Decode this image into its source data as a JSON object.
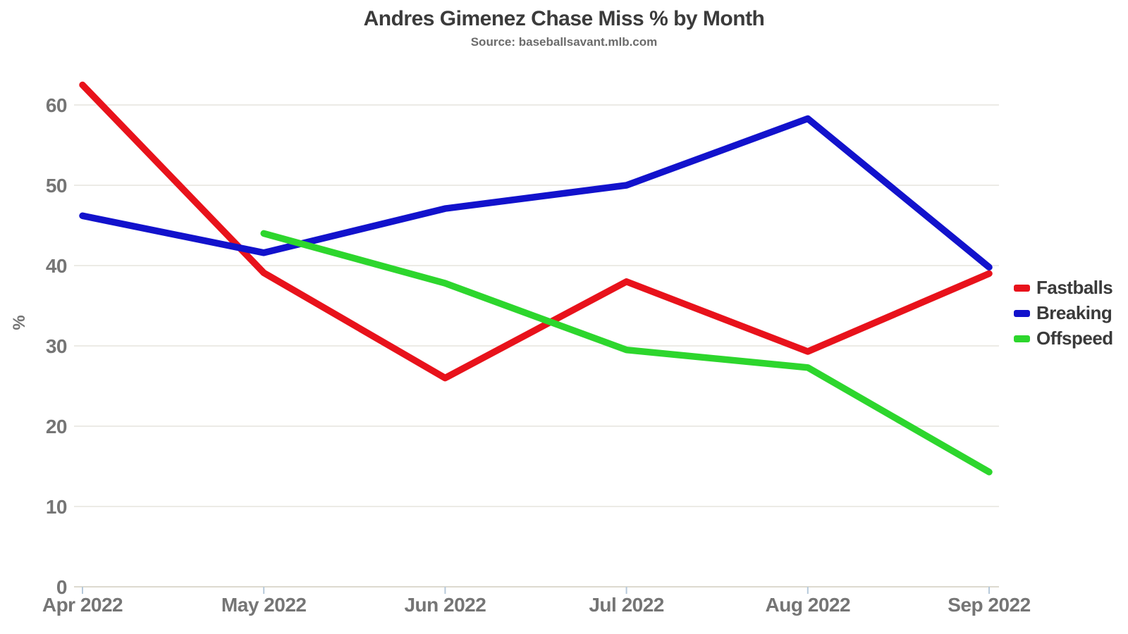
{
  "chart_data": {
    "type": "line",
    "title": "Andres Gimenez Chase Miss % by Month",
    "subtitle": "Source: baseballsavant.mlb.com",
    "xlabel": "",
    "ylabel": "%",
    "categories": [
      "Apr 2022",
      "May 2022",
      "Jun 2022",
      "Jul 2022",
      "Aug 2022",
      "Sep 2022"
    ],
    "yticks": [
      0,
      10,
      20,
      30,
      40,
      50,
      60
    ],
    "ylim": [
      0,
      65
    ],
    "grid": true,
    "legend_position": "right",
    "series": [
      {
        "name": "Fastballs",
        "color": "#e8121b",
        "values": [
          62.5,
          39.1,
          26.0,
          38.0,
          29.3,
          39.0
        ]
      },
      {
        "name": "Breaking",
        "color": "#1212cc",
        "values": [
          46.2,
          41.6,
          47.1,
          50.0,
          58.3,
          39.8
        ]
      },
      {
        "name": "Offspeed",
        "color": "#2dd62d",
        "values": [
          null,
          44.0,
          37.8,
          29.5,
          27.3,
          14.3
        ]
      }
    ],
    "colors": {
      "background": "#ffffff",
      "gridline": "#ecebe6",
      "zero_line": "#ddd9cf",
      "tick_mark": "#b6c9da",
      "axis_label": "#757575",
      "title": "#3b3b3b",
      "subtitle": "#6b6b6b",
      "legend_text": "#3a3a3a"
    }
  }
}
